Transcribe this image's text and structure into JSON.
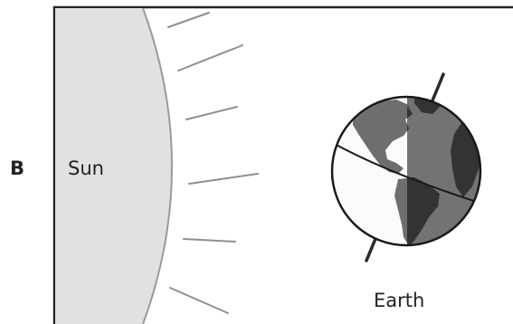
{
  "panel_label": "B",
  "sun_label": "Sun",
  "earth_label": "Earth",
  "colors": {
    "frame": "#222222",
    "sun_fill": "#e1e1e3",
    "sun_edge": "#9a9a9a",
    "rays": "#8f8f8f",
    "earth_day_ocean": "#fbfbfb",
    "earth_day_land": "#6e6e6e",
    "earth_night_ocean": "#5f5f5f",
    "earth_night_land": "#3a3a3a",
    "earth_outline": "#1a1a1a"
  }
}
